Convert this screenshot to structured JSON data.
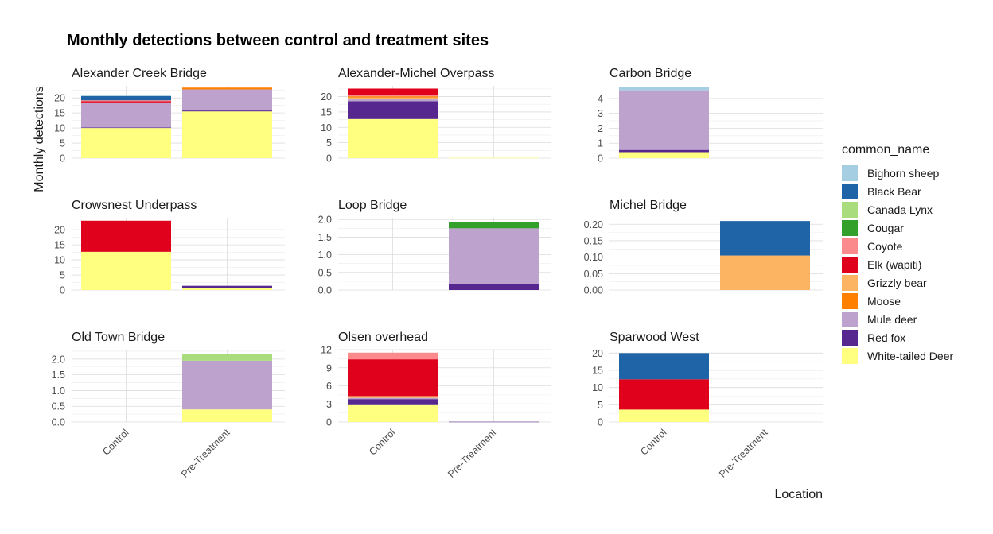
{
  "chart_data": {
    "type": "bar",
    "stacked": true,
    "faceted": true,
    "title": "Monthly detections between control and treatment sites",
    "xlabel": "Location",
    "ylabel": "Monthly detections",
    "categories": [
      "Control",
      "Pre-Treatment"
    ],
    "legend_title": "common_name",
    "legend_position": "right",
    "grid": true,
    "species": [
      {
        "name": "Bighorn sheep",
        "color": "#a6cee3"
      },
      {
        "name": "Black Bear",
        "color": "#1f64a6"
      },
      {
        "name": "Canada Lynx",
        "color": "#a8dc7c"
      },
      {
        "name": "Cougar",
        "color": "#33a02c"
      },
      {
        "name": "Coyote",
        "color": "#fb8a8c"
      },
      {
        "name": "Elk (wapiti)",
        "color": "#e0021c"
      },
      {
        "name": "Grizzly bear",
        "color": "#fdb462"
      },
      {
        "name": "Moose",
        "color": "#ff7f00"
      },
      {
        "name": "Mule deer",
        "color": "#bca2cd"
      },
      {
        "name": "Red fox",
        "color": "#56288f"
      },
      {
        "name": "White-tailed Deer",
        "color": "#ffff80"
      }
    ],
    "panels": [
      {
        "title": "Alexander Creek Bridge",
        "ylim": [
          0,
          24
        ],
        "ticks": [
          "0",
          "5",
          "10",
          "15",
          "20"
        ],
        "tick_values": [
          0,
          5,
          10,
          15,
          20
        ],
        "bars": [
          {
            "category": "Control",
            "segments": [
              {
                "species": "White-tailed Deer",
                "value": 10
              },
              {
                "species": "Red fox",
                "value": 0.2
              },
              {
                "species": "Mule deer",
                "value": 8.3
              },
              {
                "species": "Elk (wapiti)",
                "value": 0.4
              },
              {
                "species": "Coyote",
                "value": 0.3
              },
              {
                "species": "Black Bear",
                "value": 1.4
              },
              {
                "species": "Bighorn sheep",
                "value": 0.2
              }
            ]
          },
          {
            "category": "Pre-Treatment",
            "segments": [
              {
                "species": "White-tailed Deer",
                "value": 15.5
              },
              {
                "species": "Red fox",
                "value": 0.3
              },
              {
                "species": "Mule deer",
                "value": 7
              },
              {
                "species": "Moose",
                "value": 0.6
              },
              {
                "species": "Grizzly bear",
                "value": 0.3
              }
            ]
          }
        ]
      },
      {
        "title": "Alexander-Michel Overpass",
        "ylim": [
          0,
          23.5
        ],
        "ticks": [
          "0",
          "5",
          "10",
          "15",
          "20"
        ],
        "tick_values": [
          0,
          5,
          10,
          15,
          20
        ],
        "bars": [
          {
            "category": "Control",
            "segments": [
              {
                "species": "White-tailed Deer",
                "value": 12.7
              },
              {
                "species": "Red fox",
                "value": 5.8
              },
              {
                "species": "Mule deer",
                "value": 0.6
              },
              {
                "species": "Grizzly bear",
                "value": 0.6
              },
              {
                "species": "Moose",
                "value": 0.4
              },
              {
                "species": "Coyote",
                "value": 0.3
              },
              {
                "species": "Elk (wapiti)",
                "value": 2.2
              }
            ]
          },
          {
            "category": "Pre-Treatment",
            "segments": [
              {
                "species": "White-tailed Deer",
                "value": 0.1
              }
            ]
          }
        ]
      },
      {
        "title": "Carbon Bridge",
        "ylim": [
          0,
          4.85
        ],
        "ticks": [
          "0",
          "1",
          "2",
          "3",
          "4"
        ],
        "tick_values": [
          0,
          1,
          2,
          3,
          4
        ],
        "bars": [
          {
            "category": "Control",
            "segments": [
              {
                "species": "White-tailed Deer",
                "value": 0.4
              },
              {
                "species": "Red fox",
                "value": 0.15
              },
              {
                "species": "Mule deer",
                "value": 4.0
              },
              {
                "species": "Bighorn sheep",
                "value": 0.2
              }
            ]
          },
          {
            "category": "Pre-Treatment",
            "segments": []
          }
        ]
      },
      {
        "title": "Crowsnest Underpass",
        "ylim": [
          0,
          24
        ],
        "ticks": [
          "0",
          "5",
          "10",
          "15",
          "20"
        ],
        "tick_values": [
          0,
          5,
          10,
          15,
          20
        ],
        "bars": [
          {
            "category": "Control",
            "segments": [
              {
                "species": "White-tailed Deer",
                "value": 12.7
              },
              {
                "species": "Elk (wapiti)",
                "value": 10.3
              }
            ]
          },
          {
            "category": "Pre-Treatment",
            "segments": [
              {
                "species": "White-tailed Deer",
                "value": 0.7
              },
              {
                "species": "Red fox",
                "value": 0.7
              }
            ]
          }
        ]
      },
      {
        "title": "Loop Bridge",
        "ylim": [
          0,
          2.05
        ],
        "ticks": [
          "0.0",
          "0.5",
          "1.0",
          "1.5",
          "2.0"
        ],
        "tick_values": [
          0,
          0.5,
          1,
          1.5,
          2
        ],
        "bars": [
          {
            "category": "Control",
            "segments": []
          },
          {
            "category": "Pre-Treatment",
            "segments": [
              {
                "species": "Red fox",
                "value": 0.17
              },
              {
                "species": "Mule deer",
                "value": 1.58
              },
              {
                "species": "Cougar",
                "value": 0.18
              }
            ]
          }
        ]
      },
      {
        "title": "Michel Bridge",
        "ylim": [
          0,
          0.22
        ],
        "ticks": [
          "0.00",
          "0.05",
          "0.10",
          "0.15",
          "0.20"
        ],
        "tick_values": [
          0,
          0.05,
          0.1,
          0.15,
          0.2
        ],
        "bars": [
          {
            "category": "Control",
            "segments": []
          },
          {
            "category": "Pre-Treatment",
            "segments": [
              {
                "species": "Grizzly bear",
                "value": 0.105
              },
              {
                "species": "Black Bear",
                "value": 0.105
              }
            ]
          }
        ]
      },
      {
        "title": "Old Town Bridge",
        "ylim": [
          0,
          2.3
        ],
        "ticks": [
          "0.0",
          "0.5",
          "1.0",
          "1.5",
          "2.0"
        ],
        "tick_values": [
          0,
          0.5,
          1,
          1.5,
          2
        ],
        "bars": [
          {
            "category": "Control",
            "segments": []
          },
          {
            "category": "Pre-Treatment",
            "segments": [
              {
                "species": "White-tailed Deer",
                "value": 0.4
              },
              {
                "species": "Mule deer",
                "value": 1.55
              },
              {
                "species": "Canada Lynx",
                "value": 0.2
              }
            ]
          }
        ]
      },
      {
        "title": "Olsen overhead",
        "ylim": [
          0,
          12
        ],
        "ticks": [
          "0",
          "3",
          "6",
          "9",
          "12"
        ],
        "tick_values": [
          0,
          3,
          6,
          9,
          12
        ],
        "bars": [
          {
            "category": "Control",
            "segments": [
              {
                "species": "White-tailed Deer",
                "value": 2.8
              },
              {
                "species": "Red fox",
                "value": 1.0
              },
              {
                "species": "Mule deer",
                "value": 0.2
              },
              {
                "species": "Grizzly bear",
                "value": 0.3
              },
              {
                "species": "Elk (wapiti)",
                "value": 6.1
              },
              {
                "species": "Coyote",
                "value": 1.1
              }
            ]
          },
          {
            "category": "Pre-Treatment",
            "segments": [
              {
                "species": "Red fox",
                "value": 0.05
              },
              {
                "species": "Mule deer",
                "value": 0.05
              }
            ]
          }
        ]
      },
      {
        "title": "Sparwood West",
        "ylim": [
          0,
          21
        ],
        "ticks": [
          "0",
          "5",
          "10",
          "15",
          "20"
        ],
        "tick_values": [
          0,
          5,
          10,
          15,
          20
        ],
        "bars": [
          {
            "category": "Control",
            "segments": [
              {
                "species": "White-tailed Deer",
                "value": 3.6
              },
              {
                "species": "Elk (wapiti)",
                "value": 8.8
              },
              {
                "species": "Black Bear",
                "value": 7.6
              }
            ]
          },
          {
            "category": "Pre-Treatment",
            "segments": []
          }
        ]
      }
    ]
  }
}
